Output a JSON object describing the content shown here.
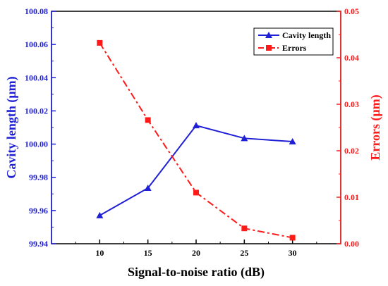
{
  "chart_data": {
    "type": "line",
    "x": [
      10,
      15,
      20,
      25,
      30
    ],
    "xlabel": "Signal-to-noise ratio (dB)",
    "xticks": [
      10,
      15,
      20,
      25,
      30
    ],
    "xlim": [
      5,
      35
    ],
    "y_left": {
      "label": "Cavity length (μm)",
      "lim": [
        99.94,
        100.08
      ],
      "ticks": [
        "99.94",
        "99.96",
        "99.98",
        "100.00",
        "100.02",
        "100.04",
        "100.06",
        "100.08"
      ],
      "color": "#1f1fd6"
    },
    "y_right": {
      "label": "Errors (μm)",
      "lim": [
        0,
        0.05
      ],
      "ticks": [
        "0.00",
        "0.01",
        "0.02",
        "0.03",
        "0.04",
        "0.05"
      ],
      "color": "#ff1a1a"
    },
    "series": [
      {
        "name": "Cavity length",
        "axis": "left",
        "values": [
          99.957,
          99.9735,
          100.0112,
          100.0035,
          100.0015
        ],
        "color": "#1f1fd6",
        "marker": "triangle",
        "line_style": "solid"
      },
      {
        "name": "Errors",
        "axis": "right",
        "values": [
          0.0432,
          0.0266,
          0.011,
          0.0033,
          0.0013
        ],
        "color": "#ff1a1a",
        "marker": "square",
        "line_style": "dash-dot"
      }
    ],
    "legend_position": "top-right",
    "grid": false
  }
}
